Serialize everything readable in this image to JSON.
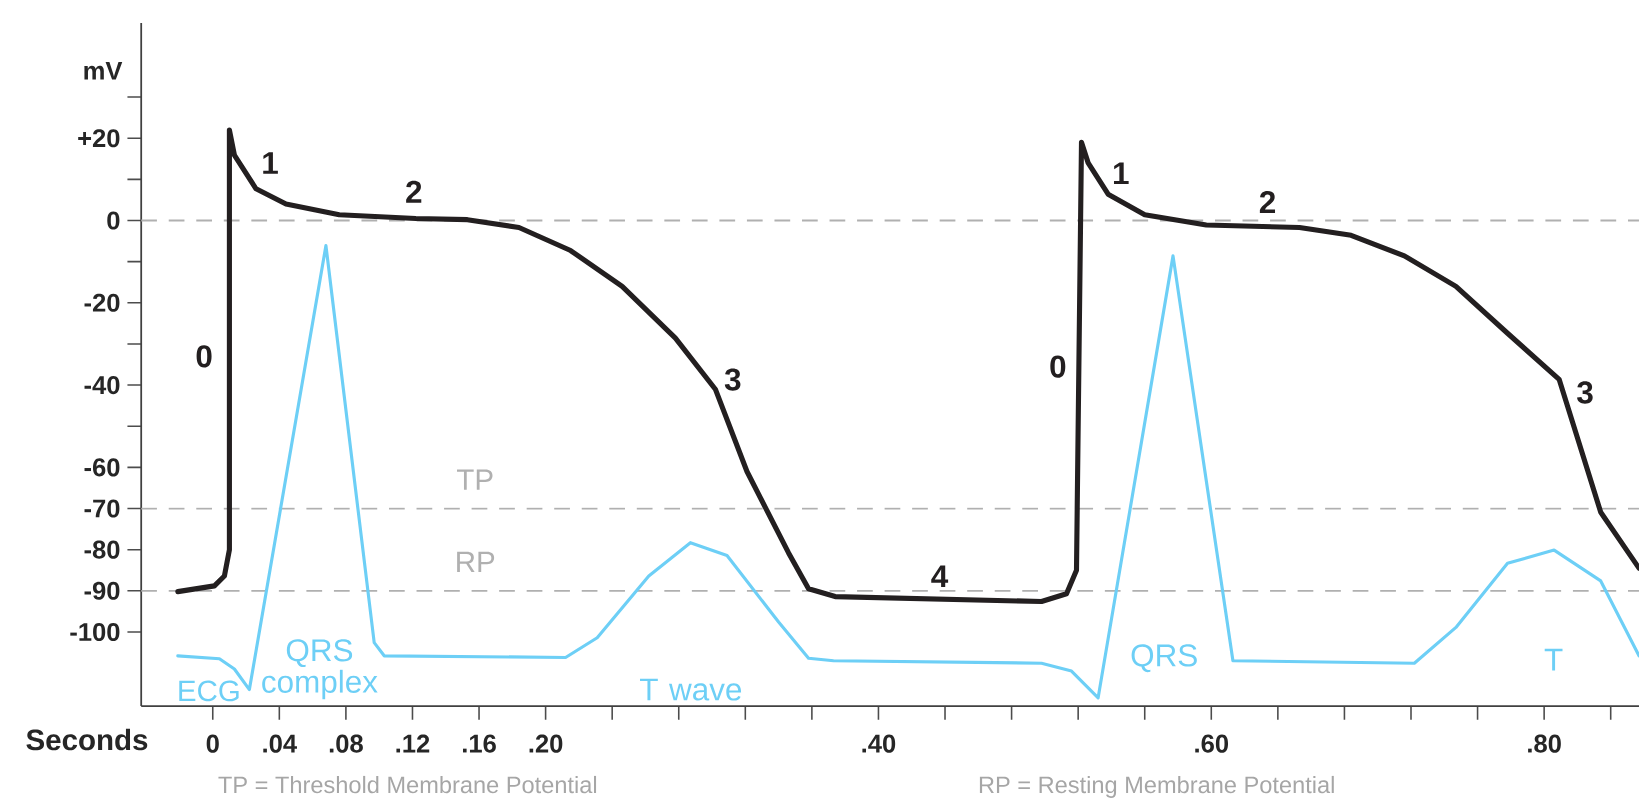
{
  "chart_data": {
    "type": "line",
    "xlabel": "Seconds",
    "ylabel": "mV",
    "xlim": [
      -0.043,
      0.857
    ],
    "ylim": [
      -118,
      48
    ],
    "xticks": [
      0,
      {
        "value": 0.04,
        "label": ".04"
      },
      {
        "value": 0.08,
        "label": ".08"
      },
      {
        "value": 0.12,
        "label": ".12"
      },
      {
        "value": 0.16,
        "label": ".16"
      },
      {
        "value": 0.2,
        "label": ".20"
      },
      {
        "value": 0.24,
        "label": null
      },
      {
        "value": 0.28,
        "label": null
      },
      {
        "value": 0.32,
        "label": null
      },
      {
        "value": 0.36,
        "label": null
      },
      {
        "value": 0.4,
        "label": ".40"
      },
      {
        "value": 0.44,
        "label": null
      },
      {
        "value": 0.48,
        "label": null
      },
      {
        "value": 0.52,
        "label": null
      },
      {
        "value": 0.56,
        "label": null
      },
      {
        "value": 0.6,
        "label": ".60"
      },
      {
        "value": 0.64,
        "label": null
      },
      {
        "value": 0.68,
        "label": null
      },
      {
        "value": 0.72,
        "label": null
      },
      {
        "value": 0.76,
        "label": null
      },
      {
        "value": 0.8,
        "label": ".80"
      },
      {
        "value": 0.84,
        "label": null
      }
    ],
    "yticks": [
      {
        "value": 30,
        "label": null
      },
      {
        "value": 20,
        "label": "+20"
      },
      {
        "value": 10,
        "label": null
      },
      0,
      {
        "value": -10,
        "label": null
      },
      -20,
      {
        "value": -30,
        "label": null
      },
      -40,
      {
        "value": -50,
        "label": null
      },
      -60,
      -70,
      -80,
      -90,
      -100
    ],
    "series": [
      {
        "color": "#231f20",
        "x": [
          -0.021,
          0.001,
          0.007,
          0.01,
          0.01,
          0.013,
          0.026,
          0.044,
          0.076,
          0.122,
          0.153,
          0.184,
          0.215,
          0.246,
          0.278,
          0.302,
          0.321,
          0.346,
          0.358,
          0.374,
          0.498,
          0.513,
          0.519,
          0.522,
          0.526,
          0.538,
          0.56,
          0.597,
          0.653,
          0.684,
          0.716,
          0.747,
          0.778,
          0.809,
          0.834,
          0.857
        ],
        "values": [
          -90.2,
          -88.8,
          -86.4,
          -80,
          22,
          15.9,
          7.7,
          4,
          1.4,
          0.5,
          0.2,
          -1.7,
          -7.3,
          -16,
          -28.6,
          -41,
          -61,
          -80.8,
          -89.5,
          -91.4,
          -92.6,
          -90.7,
          -85,
          19,
          14,
          6.4,
          1.4,
          -1.1,
          -1.7,
          -3.6,
          -8.6,
          -16,
          -27.4,
          -38.6,
          -70.9,
          -84.5
        ]
      },
      {
        "name": "ECG",
        "color": "#6dcff6",
        "x": [
          -0.021,
          0.004,
          0.013,
          0.022,
          0.068,
          0.097,
          0.103,
          0.212,
          0.231,
          0.262,
          0.287,
          0.309,
          0.34,
          0.358,
          0.373,
          0.498,
          0.516,
          0.532,
          0.577,
          0.613,
          0.722,
          0.747,
          0.778,
          0.806,
          0.834,
          0.857
        ],
        "values": [
          -105.8,
          -106.5,
          -109,
          -114,
          -6.1,
          -102.6,
          -105.8,
          -106.2,
          -101.4,
          -86.4,
          -78.3,
          -81.4,
          -97.6,
          -106.4,
          -107,
          -107.6,
          -109.5,
          -116,
          -8.6,
          -107,
          -107.6,
          -98.9,
          -83.3,
          -80.1,
          -87.6,
          -105.8
        ]
      }
    ],
    "ref_lines": [
      {
        "axis": "y",
        "value": 0,
        "color": "#b0b0b0",
        "line_style": "dashed"
      },
      {
        "axis": "y",
        "value": -70,
        "label": "TP",
        "color": "#b0b0b0",
        "line_style": "dashed"
      },
      {
        "axis": "y",
        "value": -90,
        "label": "RP",
        "color": "#b0b0b0",
        "line_style": "dashed"
      }
    ],
    "annotations": [
      "0",
      "1",
      "2",
      "3",
      "4",
      "0",
      "1",
      "2",
      "3",
      "QRS complex",
      "T wave",
      "QRS",
      "T",
      "TP = Threshold Membrane Potential",
      "RP = Resting Membrane Potential"
    ],
    "grid": false,
    "marker": "none",
    "line_style": "solid"
  }
}
